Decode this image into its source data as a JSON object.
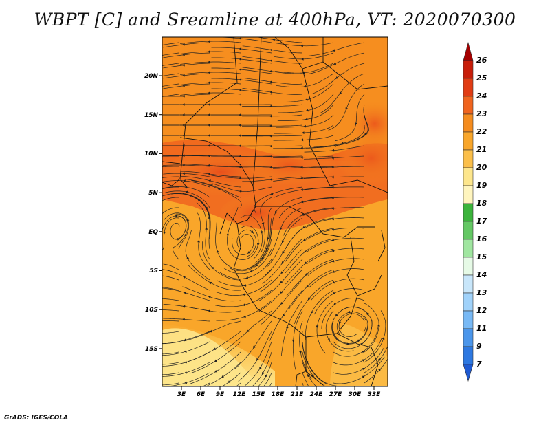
{
  "title": "WBPT [C] and Sreamline at 400hPa, VT: 2020070300",
  "footer": "GrADS: IGES/COLA",
  "map": {
    "lon_labels": [
      "3E",
      "6E",
      "9E",
      "12E",
      "15E",
      "18E",
      "21E",
      "24E",
      "27E",
      "30E",
      "33E"
    ],
    "lat_labels": [
      "20N",
      "15N",
      "10N",
      "5N",
      "EQ",
      "5S",
      "10S",
      "15S"
    ]
  },
  "colorbar": {
    "labels": [
      "26",
      "25",
      "24",
      "23",
      "22",
      "21",
      "20",
      "19",
      "18",
      "17",
      "16",
      "15",
      "14",
      "13",
      "12",
      "11",
      "9",
      "7"
    ],
    "colors": [
      "#a50000",
      "#c81e0a",
      "#e13c14",
      "#f0641e",
      "#f58c1e",
      "#f9a62a",
      "#fbbf4a",
      "#fde68c",
      "#fff5be",
      "#3cb43c",
      "#64c864",
      "#a0e6a0",
      "#e6fae6",
      "#c8e6fa",
      "#a0d2fa",
      "#78b9f5",
      "#4b96eb",
      "#2d78e1",
      "#1e5ad2"
    ]
  }
}
